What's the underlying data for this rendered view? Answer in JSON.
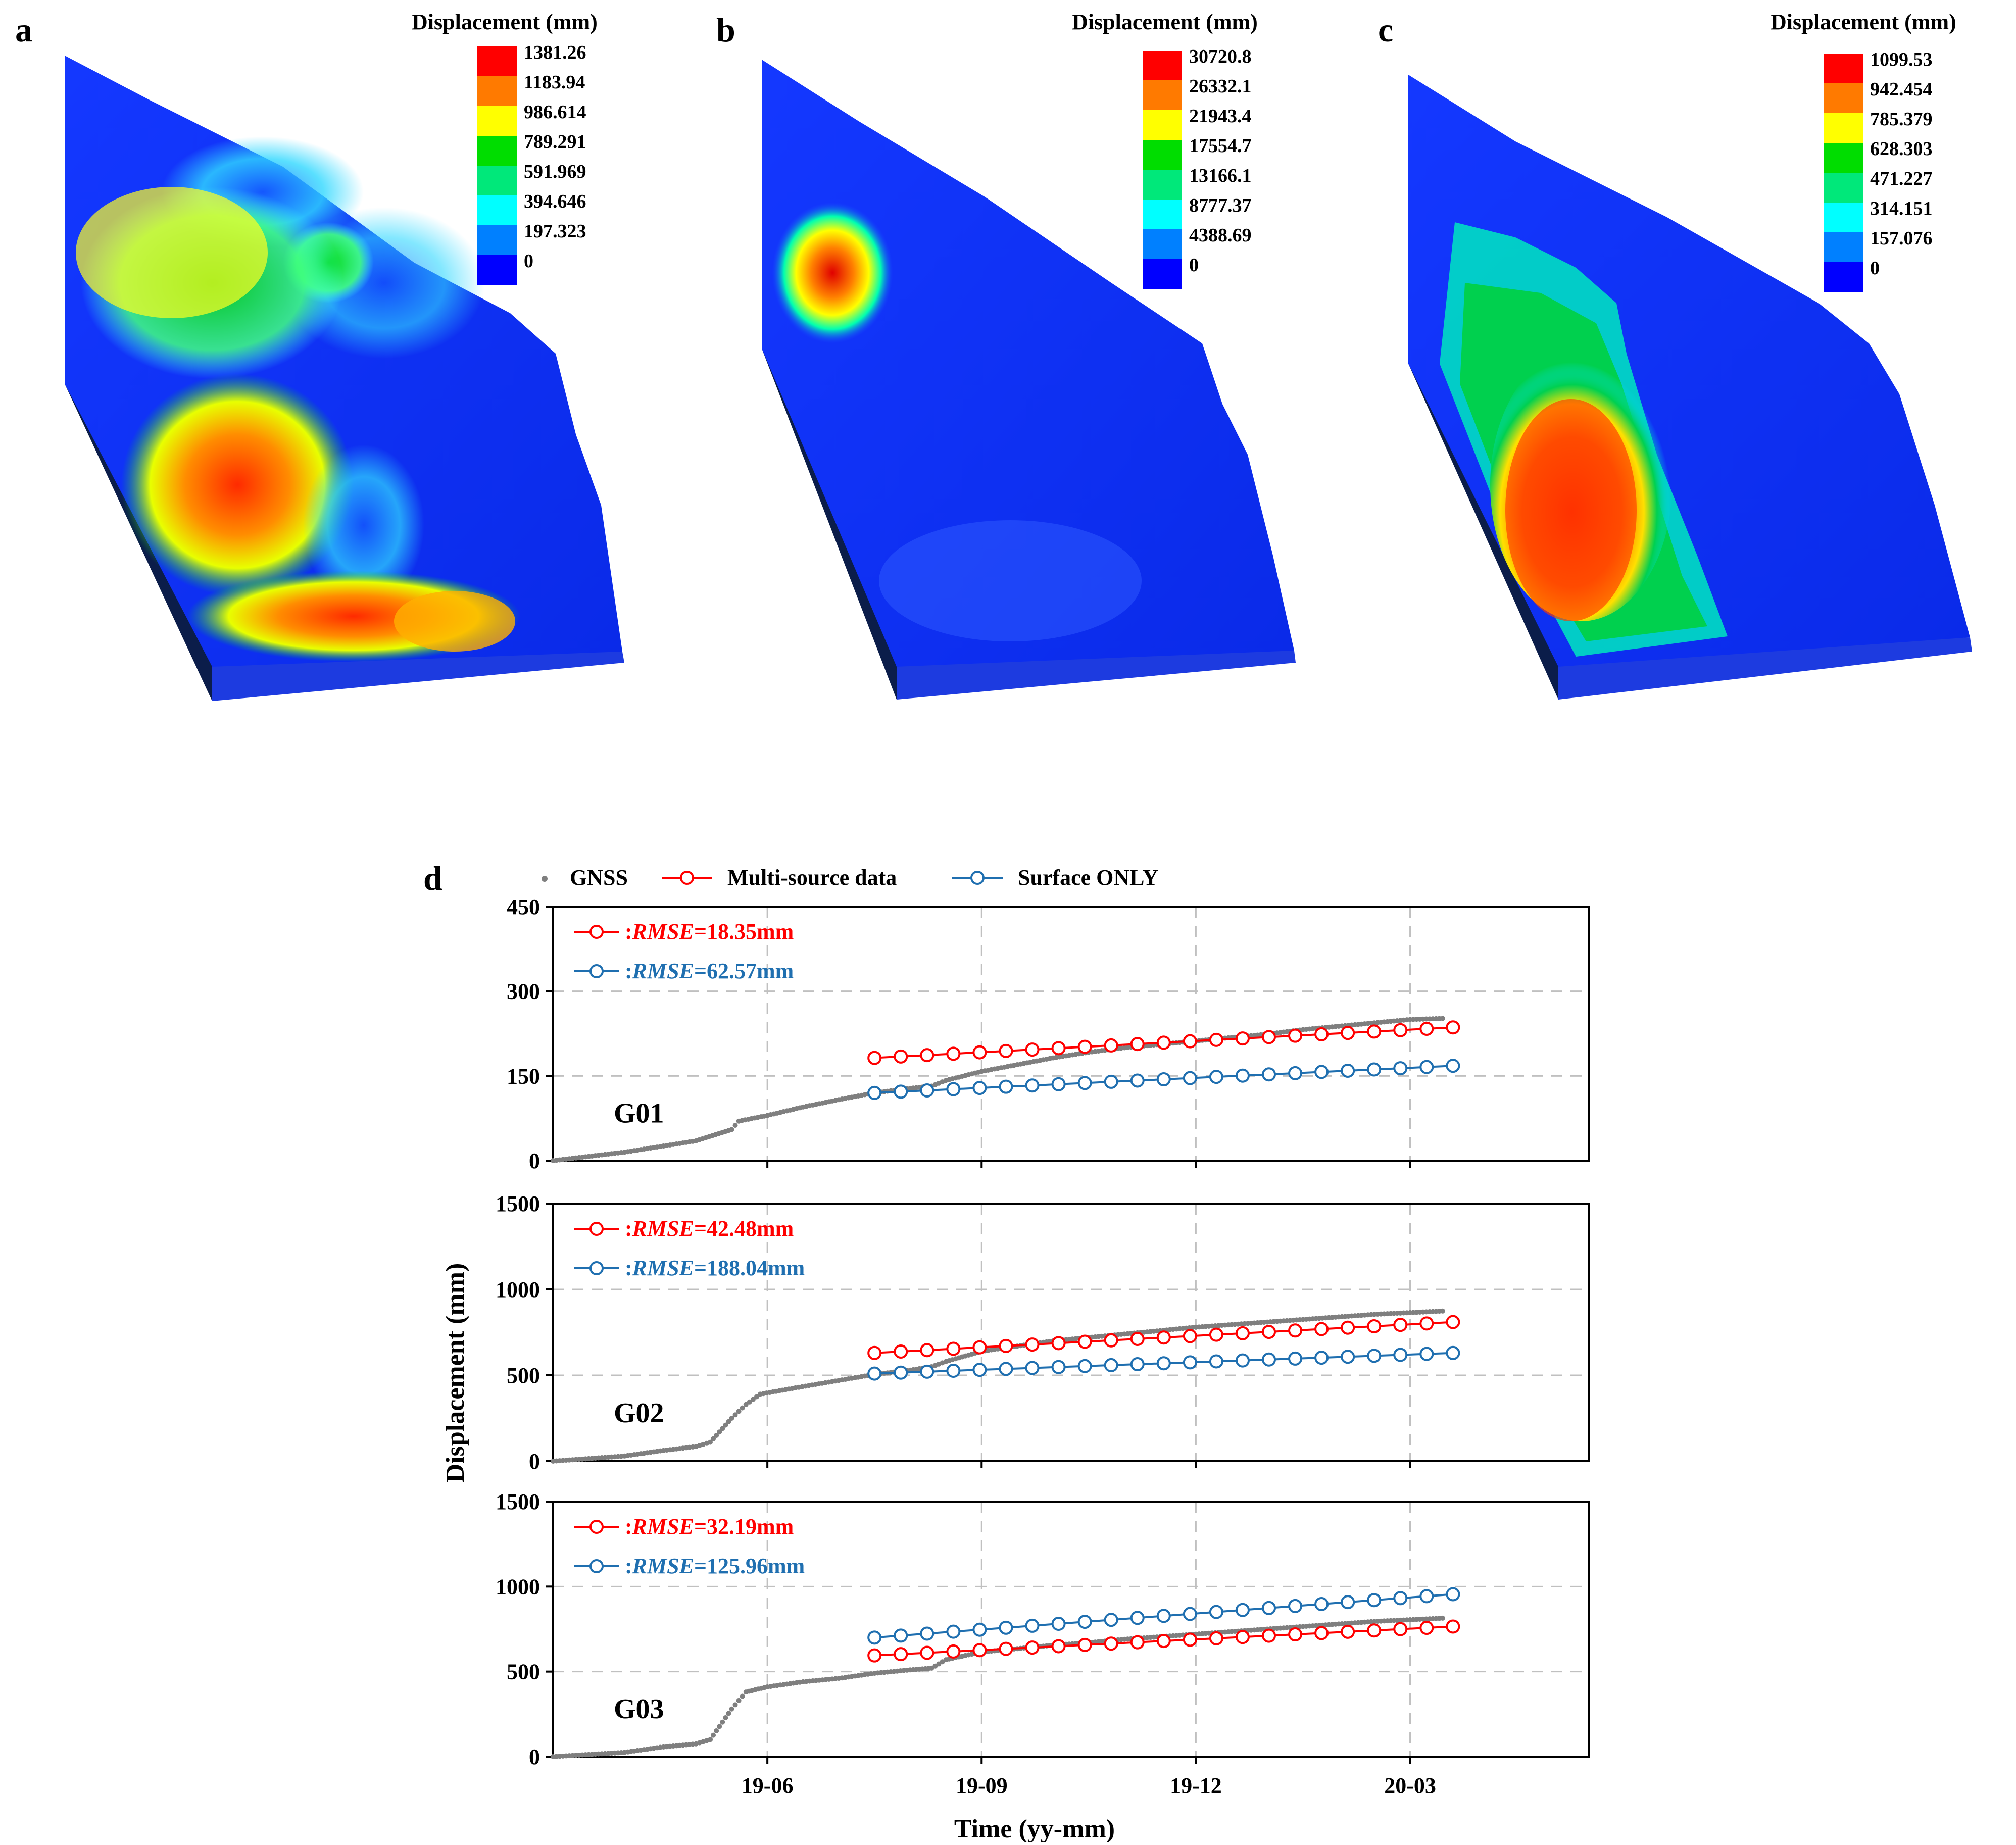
{
  "panels": [
    {
      "letter": "a",
      "legend_title": "Displacement (mm)",
      "legend_values": [
        "1381.26",
        "1183.94",
        "986.614",
        "789.291",
        "591.969",
        "394.646",
        "197.323",
        "0"
      ]
    },
    {
      "letter": "b",
      "legend_title": "Displacement (mm)",
      "legend_values": [
        "30720.8",
        "26332.1",
        "21943.4",
        "17554.7",
        "13166.1",
        "8777.37",
        "4388.69",
        "0"
      ]
    },
    {
      "letter": "c",
      "legend_title": "Displacement (mm)",
      "legend_values": [
        "1099.53",
        "942.454",
        "785.379",
        "628.303",
        "471.227",
        "314.151",
        "157.076",
        "0"
      ]
    }
  ],
  "colorbar_colors": [
    "#ff0000",
    "#ff7a00",
    "#ffff00",
    "#00dd00",
    "#00e87a",
    "#00ffff",
    "#0080ff",
    "#0000ff"
  ],
  "chart_data": {
    "type": "line",
    "panel_letter": "d",
    "legend": {
      "gnss": "GNSS",
      "multi": "Multi-source data",
      "surface": "Surface ONLY"
    },
    "xlabel": "Time (yy-mm)",
    "ylabel": "Displacement (mm)",
    "xlim": [
      -1.0,
      13.5
    ],
    "xticks": [
      {
        "x": 2,
        "label": "19-06"
      },
      {
        "x": 5,
        "label": "19-09"
      },
      {
        "x": 8,
        "label": "19-12"
      },
      {
        "x": 11,
        "label": "20-03"
      }
    ],
    "colors": {
      "gnss": "#7f7f7f",
      "multi": "#ff0000",
      "surface": "#1f6fb0"
    },
    "subplots": [
      {
        "name": "G01",
        "ylim": [
          0,
          450
        ],
        "yticks": [
          "0",
          "150",
          "300",
          "450"
        ],
        "rmse": {
          "multi_prefix": ":",
          "multi_var": "RMSE",
          "multi_value": "=18.35mm",
          "surface_prefix": ":",
          "surface_var": "RMSE",
          "surface_value": "=62.57mm"
        },
        "gnss": [
          [
            -1,
            0
          ],
          [
            0,
            15
          ],
          [
            0.5,
            25
          ],
          [
            1,
            35
          ],
          [
            1.5,
            55
          ],
          [
            1.6,
            70
          ],
          [
            2,
            80
          ],
          [
            2.5,
            95
          ],
          [
            3,
            108
          ],
          [
            3.5,
            120
          ],
          [
            4,
            128
          ],
          [
            4.3,
            132
          ],
          [
            4.5,
            142
          ],
          [
            5,
            158
          ],
          [
            5.5,
            170
          ],
          [
            6,
            182
          ],
          [
            6.5,
            192
          ],
          [
            7,
            200
          ],
          [
            7.5,
            206
          ],
          [
            8,
            212
          ],
          [
            8.5,
            218
          ],
          [
            9,
            224
          ],
          [
            9.5,
            232
          ],
          [
            10,
            238
          ],
          [
            10.5,
            244
          ],
          [
            11,
            250
          ],
          [
            11.5,
            252
          ]
        ],
        "multi": {
          "start": 3.5,
          "end": 11.6,
          "n": 23,
          "y0": 182,
          "y1": 236
        },
        "surface": {
          "start": 3.5,
          "end": 11.6,
          "n": 23,
          "y0": 120,
          "y1": 168
        }
      },
      {
        "name": "G02",
        "ylim": [
          0,
          1500
        ],
        "yticks": [
          "0",
          "500",
          "1000",
          "1500"
        ],
        "rmse": {
          "multi_prefix": ":",
          "multi_var": "RMSE",
          "multi_value": "=42.48mm",
          "surface_prefix": ":",
          "surface_var": "RMSE",
          "surface_value": "=188.04mm"
        },
        "gnss": [
          [
            -1,
            0
          ],
          [
            0,
            30
          ],
          [
            0.5,
            60
          ],
          [
            1,
            85
          ],
          [
            1.2,
            110
          ],
          [
            1.5,
            250
          ],
          [
            1.7,
            330
          ],
          [
            1.9,
            390
          ],
          [
            2.3,
            420
          ],
          [
            3,
            470
          ],
          [
            3.5,
            505
          ],
          [
            4,
            530
          ],
          [
            4.3,
            550
          ],
          [
            4.5,
            580
          ],
          [
            5,
            640
          ],
          [
            5.5,
            670
          ],
          [
            6,
            700
          ],
          [
            6.5,
            720
          ],
          [
            7,
            740
          ],
          [
            7.5,
            760
          ],
          [
            8,
            780
          ],
          [
            8.5,
            795
          ],
          [
            9,
            810
          ],
          [
            9.5,
            825
          ],
          [
            10,
            840
          ],
          [
            10.5,
            855
          ],
          [
            11,
            865
          ],
          [
            11.5,
            875
          ]
        ],
        "multi": {
          "start": 3.5,
          "end": 11.6,
          "n": 23,
          "y0": 630,
          "y1": 810
        },
        "surface": {
          "start": 3.5,
          "end": 11.6,
          "n": 23,
          "y0": 510,
          "y1": 630
        }
      },
      {
        "name": "G03",
        "ylim": [
          0,
          1500
        ],
        "yticks": [
          "0",
          "500",
          "1000",
          "1500"
        ],
        "rmse": {
          "multi_prefix": ":",
          "multi_var": "RMSE",
          "multi_value": "=32.19mm",
          "surface_prefix": ":",
          "surface_var": "RMSE",
          "surface_value": "=125.96mm"
        },
        "gnss": [
          [
            -1,
            0
          ],
          [
            0,
            25
          ],
          [
            0.5,
            55
          ],
          [
            1,
            75
          ],
          [
            1.2,
            100
          ],
          [
            1.5,
            280
          ],
          [
            1.7,
            380
          ],
          [
            2,
            410
          ],
          [
            2.5,
            440
          ],
          [
            3,
            460
          ],
          [
            3.5,
            490
          ],
          [
            4,
            510
          ],
          [
            4.3,
            520
          ],
          [
            4.5,
            570
          ],
          [
            5,
            615
          ],
          [
            5.5,
            635
          ],
          [
            6,
            655
          ],
          [
            6.5,
            670
          ],
          [
            7,
            690
          ],
          [
            7.5,
            705
          ],
          [
            8,
            720
          ],
          [
            8.5,
            735
          ],
          [
            9,
            750
          ],
          [
            9.5,
            765
          ],
          [
            10,
            780
          ],
          [
            10.5,
            795
          ],
          [
            11,
            805
          ],
          [
            11.5,
            815
          ]
        ],
        "multi": {
          "start": 3.5,
          "end": 11.6,
          "n": 23,
          "y0": 595,
          "y1": 765
        },
        "surface": {
          "start": 3.5,
          "end": 11.6,
          "n": 23,
          "y0": 700,
          "y1": 955
        }
      }
    ]
  }
}
